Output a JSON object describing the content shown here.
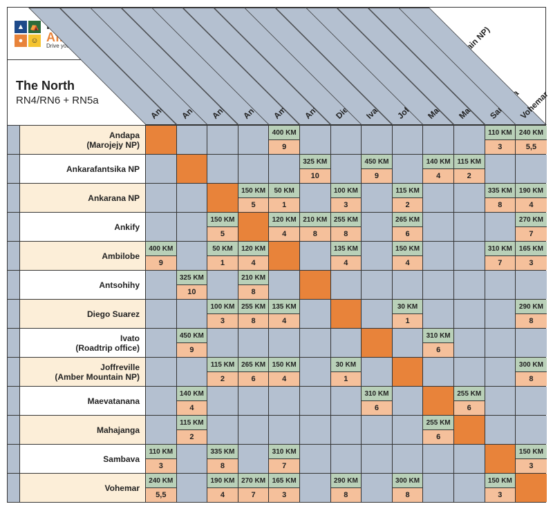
{
  "brand": {
    "l1": "Roadtrip",
    "l2": "Africa",
    "tag": "Drive your own adventure"
  },
  "title": {
    "t1": "The North",
    "t2": "RN4/RN6 + RN5a"
  },
  "logo_colors": [
    "#1e4a8a",
    "#2a6b3a",
    "#e8833a",
    "#f4c430"
  ],
  "colors": {
    "header_bg": "#b4c0d0",
    "row_even": "#fceed8",
    "diag": "#e8833a",
    "km_bg": "#b9d0b8",
    "hr_bg": "#f5c09b",
    "border": "#333333"
  },
  "columns": [
    "Andapa (Marojejy NP)",
    "Ankarafantsika NP",
    "Ankarana NP (Tsingy)",
    "Ankify",
    "Ambilobe",
    "Antsohihy",
    "Diego Suarez",
    "Ivato (Roadtrip office)",
    "Joffreville (Amber Mountain NP)",
    "Maevatanana",
    "Mahajanga",
    "Sambava",
    "Vohemar"
  ],
  "rows": [
    {
      "label": "Andapa",
      "sub": "(Marojejy NP)",
      "grey": [
        1,
        2,
        3,
        5,
        6,
        7,
        8,
        9,
        10
      ],
      "cells": [
        null,
        null,
        null,
        null,
        {
          "km": "400 KM",
          "hr": "9"
        },
        null,
        null,
        null,
        null,
        null,
        null,
        {
          "km": "110 KM",
          "hr": "3"
        },
        {
          "km": "240 KM",
          "hr": "5,5"
        }
      ]
    },
    {
      "label": "Ankarafantsika NP",
      "sub": "",
      "grey": [
        0,
        2,
        3,
        4,
        6,
        8,
        11,
        12
      ],
      "cells": [
        null,
        null,
        null,
        null,
        null,
        {
          "km": "325 KM",
          "hr": "10"
        },
        null,
        {
          "km": "450 KM",
          "hr": "9"
        },
        null,
        {
          "km": "140 KM",
          "hr": "4"
        },
        {
          "km": "115 KM",
          "hr": "2"
        },
        null,
        null
      ]
    },
    {
      "label": "Ankarana NP",
      "sub": "",
      "grey": [
        0,
        1,
        5,
        7,
        9,
        10
      ],
      "cells": [
        null,
        null,
        null,
        {
          "km": "150 KM",
          "hr": "5"
        },
        {
          "km": "50 KM",
          "hr": "1"
        },
        null,
        {
          "km": "100 KM",
          "hr": "3"
        },
        null,
        {
          "km": "115 KM",
          "hr": "2"
        },
        null,
        null,
        {
          "km": "335 KM",
          "hr": "8"
        },
        {
          "km": "190 KM",
          "hr": "4"
        }
      ]
    },
    {
      "label": "Ankify",
      "sub": "",
      "grey": [
        0,
        1,
        7,
        9,
        10,
        11
      ],
      "cells": [
        null,
        null,
        {
          "km": "150 KM",
          "hr": "5"
        },
        null,
        {
          "km": "120 KM",
          "hr": "4"
        },
        {
          "km": "210 KM",
          "hr": "8"
        },
        {
          "km": "255 KM",
          "hr": "8"
        },
        null,
        {
          "km": "265 KM",
          "hr": "6"
        },
        null,
        null,
        null,
        {
          "km": "270 KM",
          "hr": "7"
        }
      ]
    },
    {
      "label": "Ambilobe",
      "sub": "",
      "grey": [
        1,
        5,
        7,
        9,
        10
      ],
      "cells": [
        {
          "km": "400 KM",
          "hr": "9"
        },
        null,
        {
          "km": "50 KM",
          "hr": "1"
        },
        {
          "km": "120 KM",
          "hr": "4"
        },
        null,
        null,
        {
          "km": "135 KM",
          "hr": "4"
        },
        null,
        {
          "km": "150 KM",
          "hr": "4"
        },
        null,
        null,
        {
          "km": "310 KM",
          "hr": "7"
        },
        {
          "km": "165 KM",
          "hr": "3"
        }
      ]
    },
    {
      "label": "Antsohihy",
      "sub": "",
      "grey": [
        0,
        2,
        4,
        6,
        7,
        8,
        9,
        10,
        11,
        12
      ],
      "cells": [
        null,
        {
          "km": "325 KM",
          "hr": "10"
        },
        null,
        {
          "km": "210 KM",
          "hr": "8"
        },
        null,
        null,
        null,
        null,
        null,
        null,
        null,
        null,
        null
      ]
    },
    {
      "label": "Diego Suarez",
      "sub": "",
      "grey": [
        0,
        1,
        5,
        7,
        9,
        10,
        11
      ],
      "cells": [
        null,
        null,
        {
          "km": "100 KM",
          "hr": "3"
        },
        {
          "km": "255 KM",
          "hr": "8"
        },
        {
          "km": "135 KM",
          "hr": "4"
        },
        null,
        null,
        null,
        {
          "km": "30 KM",
          "hr": "1"
        },
        null,
        null,
        null,
        {
          "km": "290 KM",
          "hr": "8"
        }
      ]
    },
    {
      "label": "Ivato",
      "sub": "(Roadtrip office)",
      "grey": [
        0,
        2,
        3,
        4,
        5,
        6,
        8,
        10,
        11,
        12
      ],
      "cells": [
        null,
        {
          "km": "450 KM",
          "hr": "9"
        },
        null,
        null,
        null,
        null,
        null,
        null,
        null,
        {
          "km": "310 KM",
          "hr": "6"
        },
        null,
        null,
        null
      ]
    },
    {
      "label": "Joffreville",
      "sub": "(Amber Mountain NP)",
      "grey": [
        0,
        1,
        5,
        7,
        9,
        10,
        11
      ],
      "cells": [
        null,
        null,
        {
          "km": "115 KM",
          "hr": "2"
        },
        {
          "km": "265 KM",
          "hr": "6"
        },
        {
          "km": "150 KM",
          "hr": "4"
        },
        null,
        {
          "km": "30 KM",
          "hr": "1"
        },
        null,
        null,
        null,
        null,
        null,
        {
          "km": "300 KM",
          "hr": "8"
        }
      ]
    },
    {
      "label": "Maevatanana",
      "sub": "",
      "grey": [
        0,
        2,
        3,
        4,
        5,
        6,
        8,
        11,
        12
      ],
      "cells": [
        null,
        {
          "km": "140 KM",
          "hr": "4"
        },
        null,
        null,
        null,
        null,
        null,
        {
          "km": "310 KM",
          "hr": "6"
        },
        null,
        null,
        {
          "km": "255 KM",
          "hr": "6"
        },
        null,
        null
      ]
    },
    {
      "label": "Mahajanga",
      "sub": "",
      "grey": [
        0,
        2,
        3,
        4,
        5,
        6,
        7,
        8,
        11,
        12
      ],
      "cells": [
        null,
        {
          "km": "115 KM",
          "hr": "2"
        },
        null,
        null,
        null,
        null,
        null,
        null,
        null,
        {
          "km": "255 KM",
          "hr": "6"
        },
        null,
        null,
        null
      ]
    },
    {
      "label": "Sambava",
      "sub": "",
      "grey": [
        1,
        3,
        5,
        6,
        7,
        8,
        9,
        10
      ],
      "cells": [
        {
          "km": "110 KM",
          "hr": "3"
        },
        null,
        {
          "km": "335 KM",
          "hr": "8"
        },
        null,
        {
          "km": "310 KM",
          "hr": "7"
        },
        null,
        null,
        null,
        null,
        null,
        null,
        null,
        {
          "km": "150 KM",
          "hr": "3"
        }
      ]
    },
    {
      "label": "Vohemar",
      "sub": "",
      "grey": [
        1,
        5,
        7,
        9,
        10
      ],
      "cells": [
        {
          "km": "240 KM",
          "hr": "5,5"
        },
        null,
        {
          "km": "190 KM",
          "hr": "4"
        },
        {
          "km": "270 KM",
          "hr": "7"
        },
        {
          "km": "165 KM",
          "hr": "3"
        },
        null,
        {
          "km": "290 KM",
          "hr": "8"
        },
        null,
        {
          "km": "300 KM",
          "hr": "8"
        },
        null,
        null,
        {
          "km": "150 KM",
          "hr": "3"
        },
        null
      ]
    }
  ]
}
